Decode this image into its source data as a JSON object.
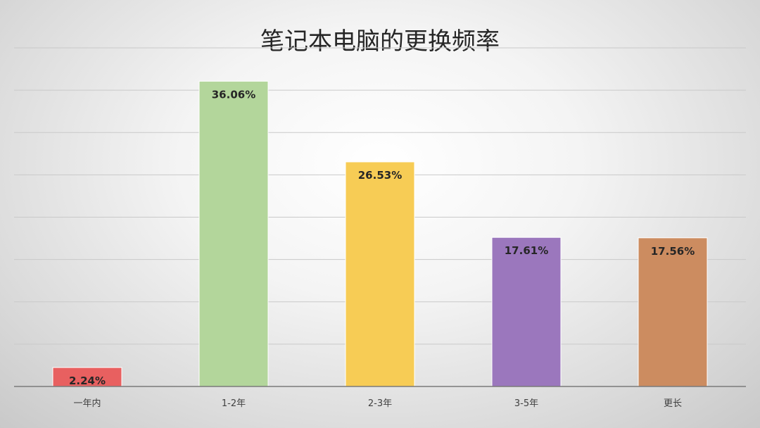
{
  "chart_data": {
    "type": "bar",
    "title": "笔记本电脑的更换频率",
    "categories": [
      "一年内",
      "1-2年",
      "2-3年",
      "3-5年",
      "更长"
    ],
    "values": [
      2.24,
      36.06,
      26.53,
      17.61,
      17.56
    ],
    "value_labels": [
      "2.24%",
      "36.06%",
      "26.53%",
      "17.61%",
      "17.56%"
    ],
    "colors": [
      "#e86060",
      "#b3d69b",
      "#f7cc55",
      "#9b77bd",
      "#cc8c60"
    ],
    "xlabel": "",
    "ylabel": "",
    "ylim": [
      0,
      40
    ],
    "grid": true,
    "legend": "none"
  }
}
